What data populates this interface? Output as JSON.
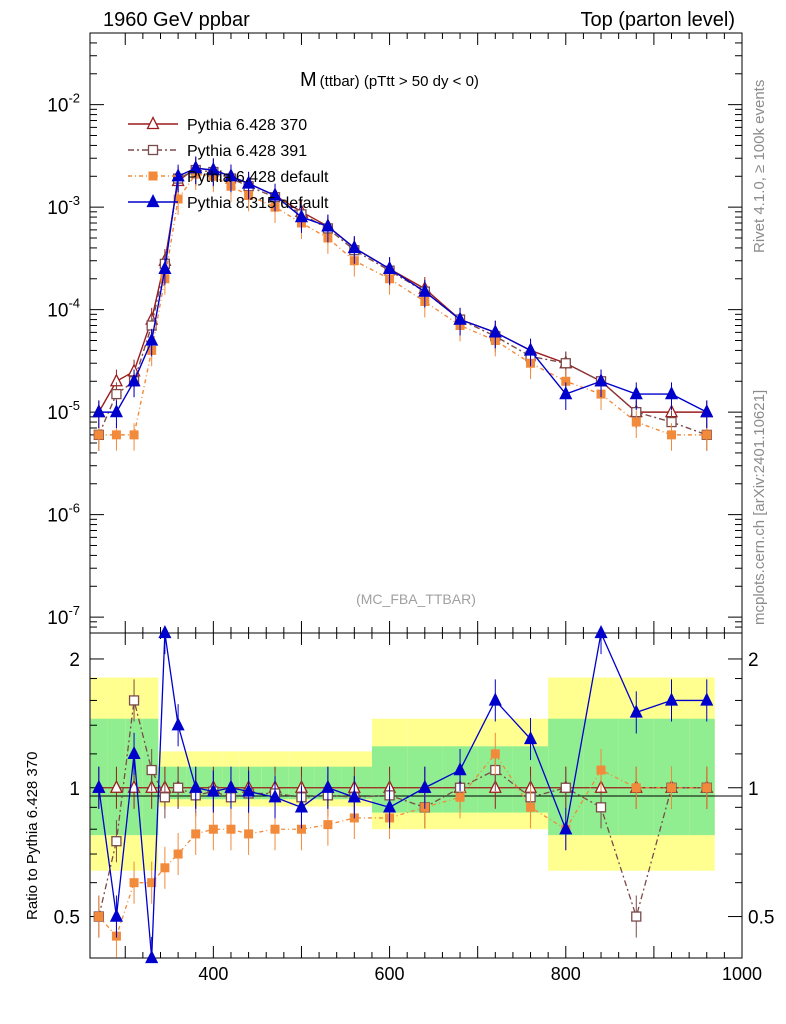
{
  "header": {
    "left": "1960 GeV ppbar",
    "right": "Top (parton level)"
  },
  "side_text": {
    "rivet": "Rivet 4.1.0, ≥ 100k events",
    "mcplots": "mcplots.cern.ch [arXiv:2401.10621]"
  },
  "chart_data": {
    "type": "line",
    "title": "M",
    "title_sub": "(ttbar) (pTtt > 50 dy < 0)",
    "watermark": "(MC_FBA_TTBAR)",
    "xlabel": "",
    "ylabel_top": "",
    "ylabel_ratio": "Ratio to Pythia 6.428 370",
    "xlim": [
      260,
      1000
    ],
    "ylim_log": [
      7e-08,
      0.05
    ],
    "ratio_ylim": [
      0.4,
      2.3
    ],
    "x_ticks": [
      "400",
      "600",
      "800",
      "1000"
    ],
    "y_ticks_top": [
      {
        "base": "10",
        "exp": "-7"
      },
      {
        "base": "10",
        "exp": "-6"
      },
      {
        "base": "10",
        "exp": "-5"
      },
      {
        "base": "10",
        "exp": "-4"
      },
      {
        "base": "10",
        "exp": "-3"
      },
      {
        "base": "10",
        "exp": "-2"
      }
    ],
    "y_ticks_ratio": [
      "0.5",
      "1",
      "2"
    ],
    "x": [
      270,
      290,
      310,
      330,
      345,
      360,
      380,
      400,
      420,
      440,
      470,
      500,
      530,
      560,
      600,
      640,
      680,
      720,
      760,
      800,
      840,
      880,
      920,
      960
    ],
    "series": [
      {
        "name": "Pythia 6.428 370",
        "color": "#9b1c1c",
        "marker": "triangle-open",
        "dash": "",
        "values": [
          1e-05,
          2e-05,
          2.5e-05,
          8e-05,
          0.0003,
          0.0018,
          0.0024,
          0.0023,
          0.002,
          0.0017,
          0.0013,
          0.0009,
          0.00065,
          0.0004,
          0.00025,
          0.00016,
          8e-05,
          6e-05,
          4e-05,
          3e-05,
          2e-05,
          1e-05,
          1e-05,
          1e-05
        ],
        "ratio": [
          1.0,
          1.0,
          1.0,
          1.0,
          1.0,
          1.0,
          1.0,
          1.0,
          1.0,
          1.0,
          1.0,
          1.0,
          1.0,
          1.0,
          1.0,
          1.0,
          1.0,
          1.0,
          1.0,
          1.0,
          1.0,
          1.0,
          1.0,
          1.0
        ]
      },
      {
        "name": "Pythia 6.428 391",
        "color": "#7b4a4a",
        "marker": "square-open",
        "dash": "6,3,2,3",
        "values": [
          6e-06,
          1.5e-05,
          2e-05,
          7e-05,
          0.00028,
          0.0019,
          0.0023,
          0.0022,
          0.0019,
          0.0016,
          0.00125,
          0.00085,
          0.00062,
          0.00038,
          0.00024,
          0.00015,
          8e-05,
          5.5e-05,
          3.5e-05,
          3e-05,
          2e-05,
          1e-05,
          8e-06,
          6e-06
        ],
        "ratio": [
          0.5,
          0.75,
          1.6,
          1.1,
          0.95,
          1.0,
          0.96,
          0.98,
          0.95,
          0.97,
          0.97,
          0.95,
          0.96,
          0.95,
          0.96,
          0.9,
          1.0,
          1.1,
          0.95,
          1.0,
          0.9,
          0.5,
          1.0,
          1.0
        ]
      },
      {
        "name": "Pythia 6.428 default",
        "color": "#f28a3c",
        "marker": "square-filled",
        "dash": "4,3,1,3",
        "values": [
          6e-06,
          6e-06,
          6e-06,
          4e-05,
          0.0002,
          0.0012,
          0.0021,
          0.002,
          0.0016,
          0.0013,
          0.001,
          0.0007,
          0.0005,
          0.0003,
          0.0002,
          0.00012,
          7e-05,
          5e-05,
          3e-05,
          2e-05,
          1.5e-05,
          8e-06,
          6e-06,
          6e-06
        ],
        "ratio": [
          0.5,
          0.45,
          0.6,
          0.6,
          0.65,
          0.7,
          0.78,
          0.8,
          0.8,
          0.78,
          0.8,
          0.8,
          0.82,
          0.85,
          0.85,
          0.9,
          0.95,
          1.2,
          0.9,
          0.8,
          1.1,
          1.0,
          1.0,
          1.0
        ]
      },
      {
        "name": "Pythia 8.315 default",
        "color": "#0000cc",
        "marker": "triangle-filled",
        "dash": "",
        "values": [
          1e-05,
          1e-05,
          2e-05,
          5e-05,
          0.00025,
          0.002,
          0.0024,
          0.0023,
          0.002,
          0.0017,
          0.0013,
          0.0008,
          0.00065,
          0.0004,
          0.00025,
          0.00015,
          8e-05,
          6e-05,
          4e-05,
          1.5e-05,
          2e-05,
          1.5e-05,
          1.5e-05,
          1e-05
        ],
        "ratio": [
          1.0,
          0.5,
          1.2,
          0.4,
          2.3,
          1.4,
          1.0,
          0.98,
          1.0,
          0.98,
          0.95,
          0.9,
          1.0,
          0.95,
          0.9,
          1.0,
          1.1,
          1.6,
          1.3,
          0.8,
          2.3,
          1.5,
          1.6,
          1.6
        ]
      }
    ],
    "ratio_bands": [
      {
        "name": "stat-green",
        "color": "#90ee90"
      },
      {
        "name": "stat-yellow",
        "color": "#ffff90"
      }
    ]
  }
}
